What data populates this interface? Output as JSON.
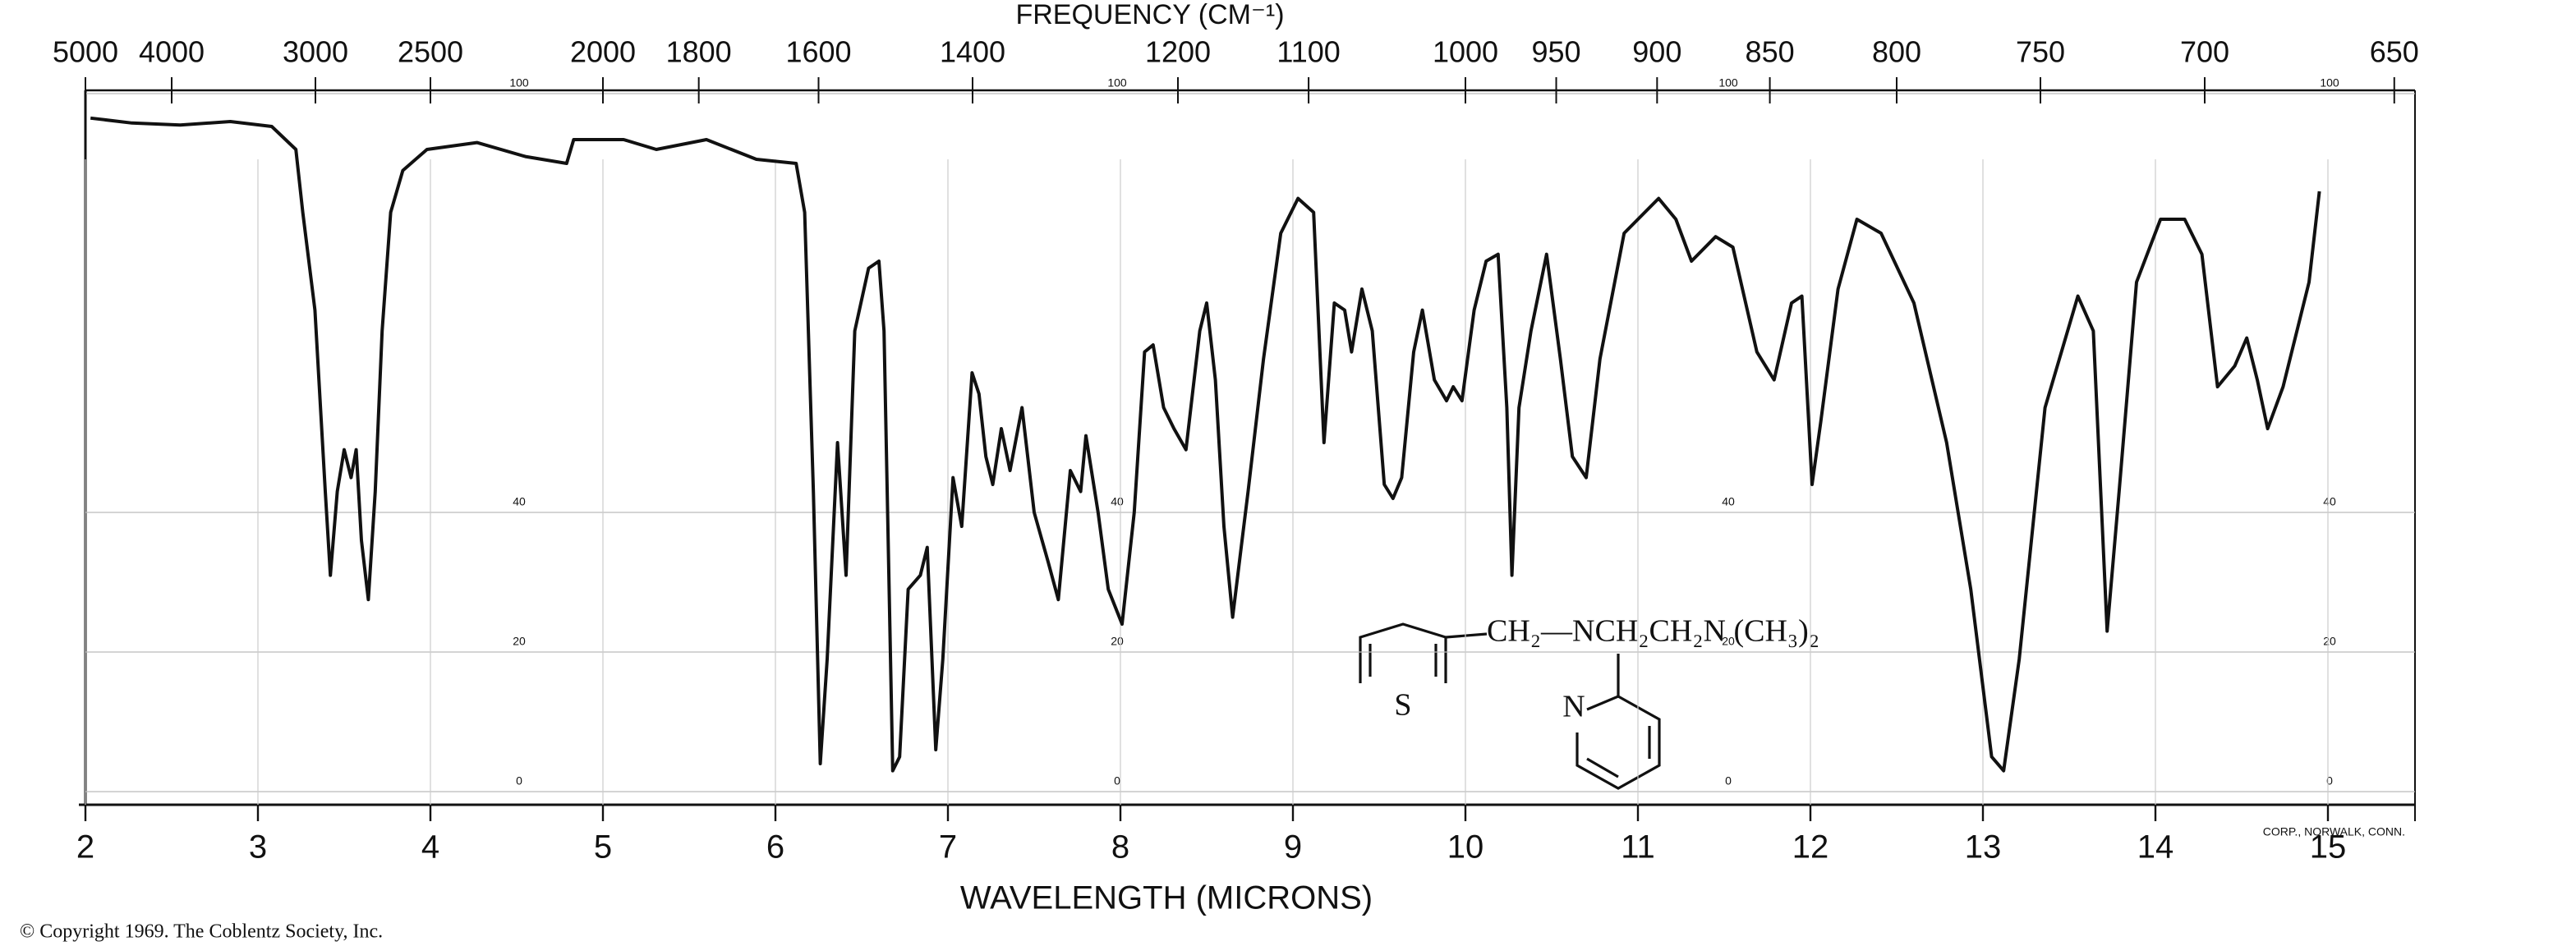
{
  "chart_data": {
    "type": "line",
    "title": "FREQUENCY (CM⁻¹)",
    "x_label": "WAVELENGTH (MICRONS)",
    "color": "#111111",
    "grid": true,
    "x": [
      2.03,
      2.27,
      2.55,
      2.84,
      3.08,
      3.22,
      3.26,
      3.33,
      3.39,
      3.42,
      3.46,
      3.5,
      3.54,
      3.57,
      3.6,
      3.64,
      3.68,
      3.72,
      3.77,
      3.84,
      3.98,
      4.27,
      4.55,
      4.79,
      4.83,
      5.12,
      5.31,
      5.6,
      5.89,
      6.12,
      6.17,
      6.22,
      6.26,
      6.3,
      6.36,
      6.41,
      6.46,
      6.54,
      6.6,
      6.63,
      6.68,
      6.72,
      6.77,
      6.84,
      6.88,
      6.93,
      6.97,
      7.03,
      7.08,
      7.14,
      7.18,
      7.22,
      7.26,
      7.31,
      7.36,
      7.43,
      7.5,
      7.58,
      7.64,
      7.71,
      7.77,
      7.8,
      7.87,
      7.93,
      8.01,
      8.08,
      8.14,
      8.19,
      8.25,
      8.31,
      8.38,
      8.46,
      8.5,
      8.55,
      8.6,
      8.65,
      8.7,
      8.74,
      8.83,
      8.93,
      9.03,
      9.12,
      9.18,
      9.24,
      9.3,
      9.34,
      9.4,
      9.46,
      9.53,
      9.58,
      9.63,
      9.7,
      9.75,
      9.82,
      9.89,
      9.93,
      9.98,
      10.05,
      10.12,
      10.19,
      10.24,
      10.27,
      10.31,
      10.38,
      10.47,
      10.55,
      10.62,
      10.7,
      10.78,
      10.92,
      11.12,
      11.22,
      11.31,
      11.45,
      11.55,
      11.69,
      11.79,
      11.89,
      11.95,
      12.01,
      12.06,
      12.16,
      12.27,
      12.41,
      12.6,
      12.79,
      12.93,
      13.05,
      13.12,
      13.21,
      13.36,
      13.55,
      13.64,
      13.72,
      13.79,
      13.89,
      14.03,
      14.17,
      14.27,
      14.36,
      14.46,
      14.53,
      14.59,
      14.65,
      14.74,
      14.89,
      14.95
    ],
    "values": [
      96.5,
      95.8,
      95.5,
      96,
      95.3,
      92,
      83,
      69,
      43,
      31,
      43,
      49,
      45,
      49,
      36,
      27.5,
      43,
      66,
      83,
      89,
      92,
      93,
      91,
      90,
      93.4,
      93.4,
      92,
      93.4,
      90.6,
      90,
      83,
      43,
      4,
      19,
      50,
      31,
      66,
      75,
      76,
      66,
      3,
      5,
      29,
      31,
      35,
      6,
      19,
      45,
      38,
      60,
      57,
      48,
      44,
      52,
      46,
      55,
      40,
      33,
      27.5,
      46,
      43,
      51,
      40,
      29,
      24,
      40,
      63,
      64,
      55,
      52,
      49,
      66,
      70,
      59,
      38,
      25,
      35,
      43,
      62,
      80,
      85,
      83,
      50,
      70,
      69,
      63,
      72,
      66,
      44,
      42,
      45,
      63,
      69,
      59,
      56,
      58,
      56,
      69,
      76,
      77,
      55,
      31,
      55,
      66,
      77,
      62,
      48,
      45,
      62,
      80,
      85,
      82,
      76,
      79.5,
      78,
      63,
      59,
      70,
      71,
      44,
      53,
      72,
      82,
      80,
      70,
      50,
      29,
      5,
      3,
      19,
      55,
      71,
      66,
      23,
      43,
      73,
      82,
      82,
      77,
      58,
      61,
      65,
      59,
      52,
      58,
      73,
      86
    ],
    "xlim": [
      2,
      15.4
    ],
    "xticks": [
      2,
      3,
      4,
      5,
      6,
      7,
      8,
      9,
      10,
      11,
      12,
      13,
      14,
      15
    ],
    "x2ticks": [
      5000,
      4000,
      3000,
      2500,
      2000,
      1800,
      1600,
      1400,
      1200,
      1100,
      1000,
      950,
      900,
      850,
      800,
      750,
      700,
      650
    ],
    "ylim": [
      0,
      100
    ],
    "yticks": [
      0,
      20,
      40,
      100
    ],
    "structure": {
      "formula": "CH₂—NCH₂CH₂N (CH₃)₂",
      "ring_atoms": [
        "S",
        "N"
      ]
    },
    "maker": "CORP., NORWALK, CONN.",
    "copyright": "© Copyright 1969. The Coblentz Society, Inc."
  }
}
